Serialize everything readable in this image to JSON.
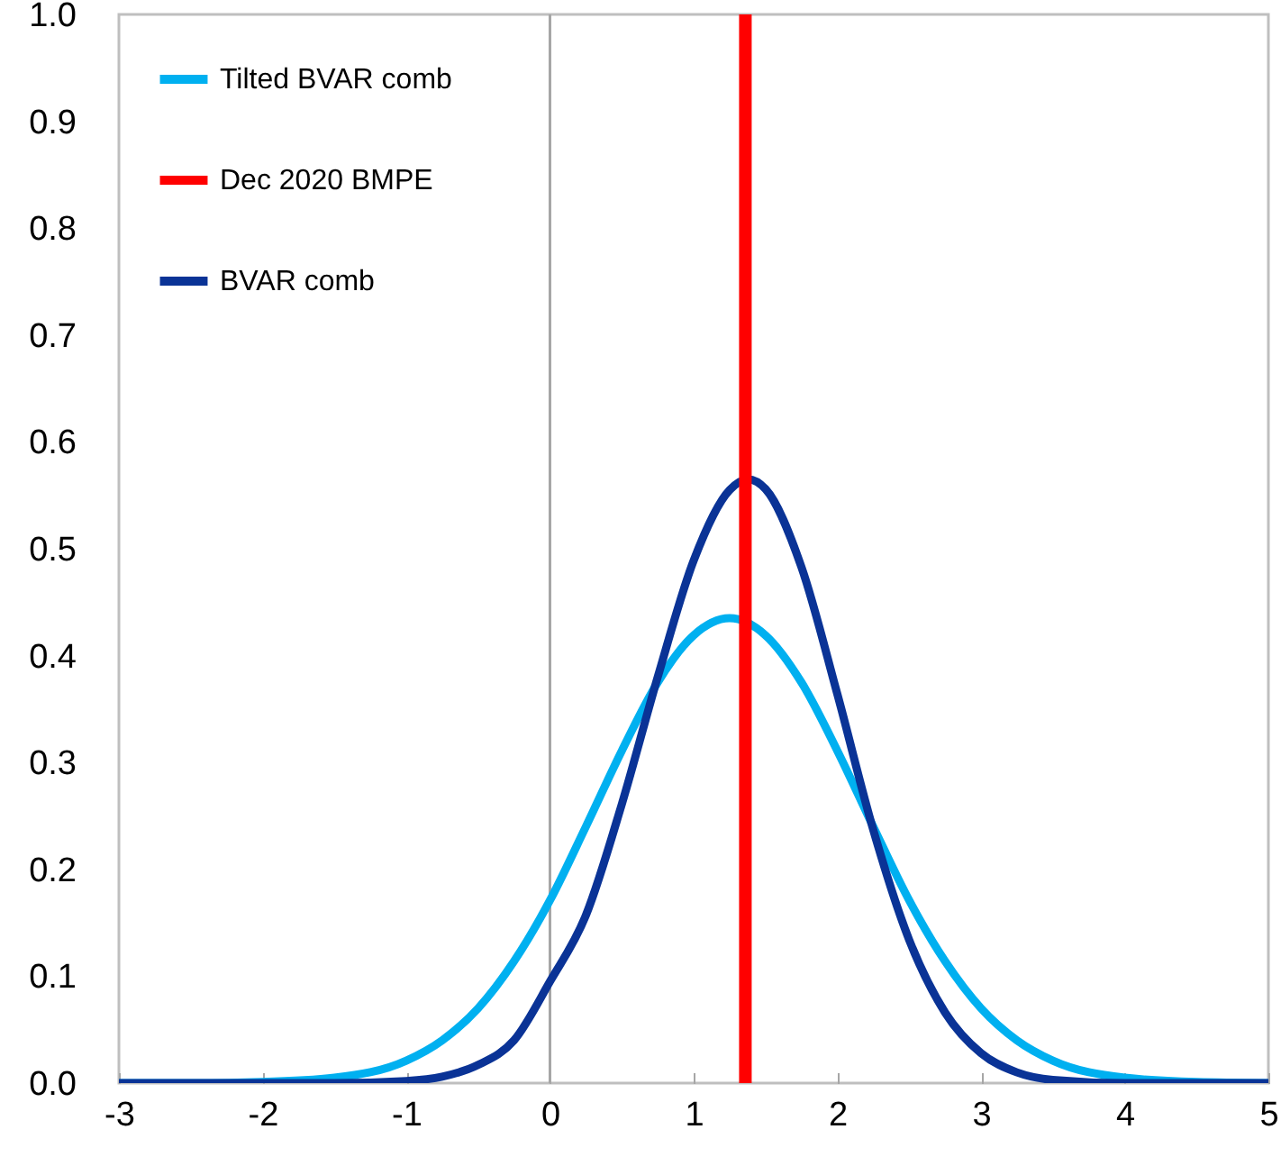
{
  "chart_data": {
    "type": "line",
    "xlim": [
      -3,
      5
    ],
    "ylim": [
      0,
      1
    ],
    "xticks": [
      -3,
      -2,
      -1,
      0,
      1,
      2,
      3,
      4,
      5
    ],
    "yticks": [
      {
        "value": 0,
        "label": "0.0"
      },
      {
        "value": 0.1,
        "label": "0.1"
      },
      {
        "value": 0.2,
        "label": "0.2"
      },
      {
        "value": 0.3,
        "label": "0.3"
      },
      {
        "value": 0.4,
        "label": "0.4"
      },
      {
        "value": 0.5,
        "label": "0.5"
      },
      {
        "value": 0.6,
        "label": "0.6"
      },
      {
        "value": 0.7,
        "label": "0.7"
      },
      {
        "value": 0.8,
        "label": "0.8"
      },
      {
        "value": 0.9,
        "label": "0.9"
      },
      {
        "value": 1,
        "label": "1.0"
      }
    ],
    "legend": "top left",
    "grid": false,
    "ref_lines": [
      {
        "axis": "x",
        "value": 0,
        "color": "#a6a6a6"
      }
    ],
    "series": [
      {
        "name": "Tilted BVAR comb",
        "color": "#00b0f0",
        "x": [
          -3,
          -2.5,
          -2,
          -1.5,
          -1,
          -0.75,
          -0.5,
          -0.25,
          0,
          0.25,
          0.5,
          0.75,
          1,
          1.25,
          1.5,
          1.75,
          2,
          2.25,
          2.5,
          2.75,
          3,
          3.25,
          3.5,
          4,
          4.5,
          5
        ],
        "values": [
          0,
          0,
          0.001,
          0.005,
          0.021,
          0.04,
          0.07,
          0.114,
          0.171,
          0.24,
          0.311,
          0.375,
          0.419,
          0.435,
          0.419,
          0.375,
          0.311,
          0.24,
          0.171,
          0.114,
          0.07,
          0.04,
          0.021,
          0.005,
          0.001,
          0
        ]
      },
      {
        "name": "Dec 2020 BMPE",
        "color": "#ff0000",
        "x": [
          1.36,
          1.36
        ],
        "values": [
          0,
          1
        ]
      },
      {
        "name": "BVAR comb",
        "color": "#0a3396",
        "x": [
          -3,
          -2,
          -1.5,
          -1,
          -0.75,
          -0.5,
          -0.25,
          0,
          0.25,
          0.5,
          0.75,
          1,
          1.25,
          1.38,
          1.5,
          1.75,
          2,
          2.25,
          2.5,
          2.75,
          3,
          3.25,
          3.5,
          4,
          5
        ],
        "values": [
          0,
          0,
          0,
          0.002,
          0.006,
          0.017,
          0.04,
          0.095,
          0.157,
          0.261,
          0.38,
          0.489,
          0.555,
          0.565,
          0.556,
          0.483,
          0.364,
          0.237,
          0.134,
          0.066,
          0.028,
          0.01,
          0.003,
          0,
          0
        ]
      }
    ]
  }
}
